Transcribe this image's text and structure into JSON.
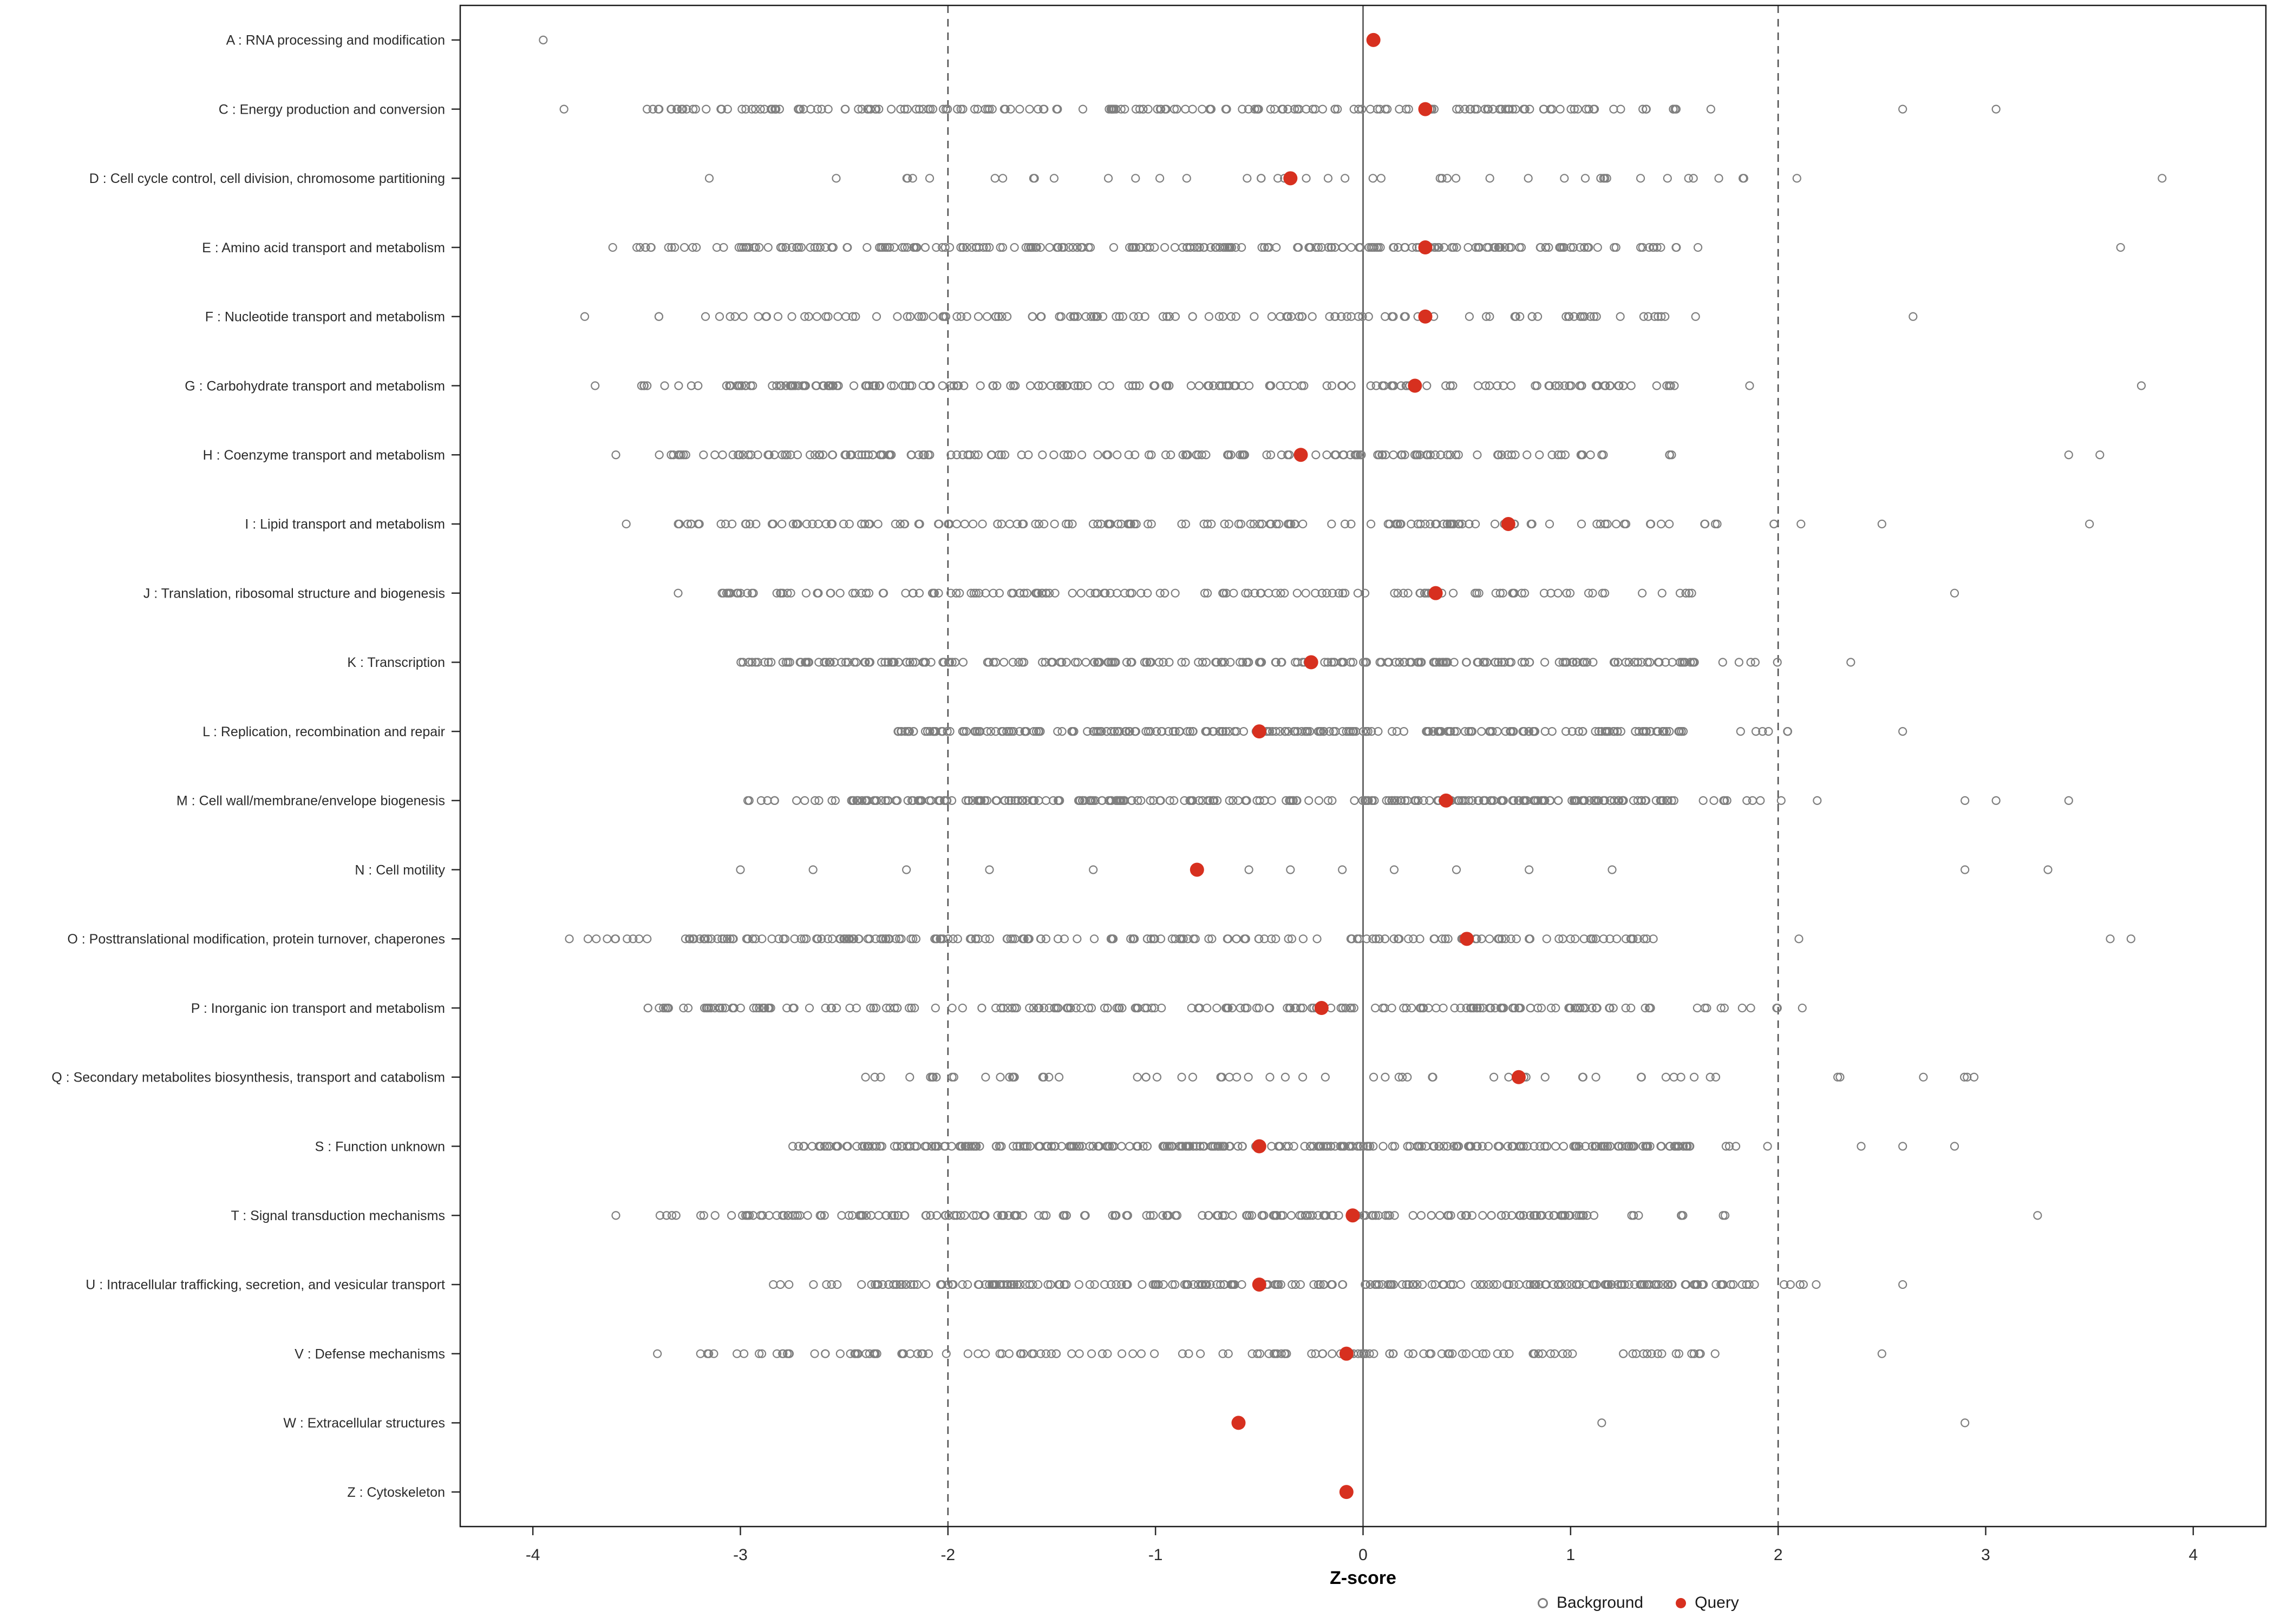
{
  "chart_data": {
    "type": "scatter",
    "title": "",
    "xlabel": "Z-score",
    "xlim": [
      -4.35,
      4.35
    ],
    "x_ticks": [
      -4,
      -3,
      -2,
      -1,
      0,
      1,
      2,
      3,
      4
    ],
    "ref_lines": {
      "solid": [
        0
      ],
      "dashed": [
        -2,
        2
      ]
    },
    "grid": false,
    "legend_position": "bottom",
    "colors": {
      "background": "#7f7f7f",
      "query": "#d7301f",
      "ref_line": "#4d4d4d",
      "panel_border": "#1a1a1a",
      "axis_text": "#2b2b2b"
    },
    "legend": [
      {
        "id": "background",
        "label": "Background",
        "marker": "open-circle"
      },
      {
        "id": "query",
        "label": "Query",
        "marker": "filled-circle"
      }
    ],
    "categories": [
      {
        "code": "A",
        "label": "A : RNA processing and modification",
        "query": 0.05,
        "bg_bands": [],
        "bg_points": [
          -3.95
        ]
      },
      {
        "code": "C",
        "label": "C : Energy production and conversion",
        "query": 0.3,
        "bg_bands": [
          [
            -3.6,
            -3.0,
            18
          ],
          [
            -3.0,
            1.25,
            170
          ],
          [
            1.3,
            1.7,
            8
          ]
        ],
        "bg_points": [
          -3.85,
          2.6,
          3.05
        ]
      },
      {
        "code": "D",
        "label": "D : Cell cycle control, cell division, chromosome partitioning",
        "query": -0.35,
        "bg_bands": [
          [
            -2.6,
            2.1,
            44
          ]
        ],
        "bg_points": [
          -3.15,
          3.85
        ]
      },
      {
        "code": "E",
        "label": "E : Amino acid transport and metabolism",
        "query": 0.3,
        "bg_bands": [
          [
            -3.7,
            -3.1,
            14
          ],
          [
            -3.1,
            1.25,
            210
          ],
          [
            1.3,
            1.65,
            10
          ]
        ],
        "bg_points": [
          3.65
        ]
      },
      {
        "code": "F",
        "label": "F : Nucleotide transport and metabolism",
        "query": 0.3,
        "bg_bands": [
          [
            -3.4,
            -2.9,
            8
          ],
          [
            -2.9,
            1.15,
            115
          ],
          [
            1.2,
            1.75,
            8
          ]
        ],
        "bg_points": [
          -3.75,
          2.65
        ]
      },
      {
        "code": "G",
        "label": "G : Carbohydrate transport and metabolism",
        "query": 0.25,
        "bg_bands": [
          [
            -3.5,
            -3.1,
            8
          ],
          [
            -3.1,
            1.3,
            180
          ],
          [
            1.4,
            1.9,
            6
          ]
        ],
        "bg_points": [
          -3.7,
          3.75
        ]
      },
      {
        "code": "H",
        "label": "H : Coenzyme transport and metabolism",
        "query": -0.3,
        "bg_bands": [
          [
            -3.4,
            1.5,
            165
          ]
        ],
        "bg_points": [
          -3.6,
          3.4,
          3.55
        ]
      },
      {
        "code": "I",
        "label": "I : Lipid transport and metabolism",
        "query": 0.7,
        "bg_bands": [
          [
            -3.3,
            1.5,
            160
          ],
          [
            1.6,
            2.2,
            7
          ]
        ],
        "bg_points": [
          -3.55,
          2.5,
          3.5
        ]
      },
      {
        "code": "J",
        "label": "J : Translation, ribosomal structure and biogenesis",
        "query": 0.35,
        "bg_bands": [
          [
            -3.1,
            1.2,
            145
          ],
          [
            1.3,
            1.6,
            7
          ]
        ],
        "bg_points": [
          -3.3,
          2.85
        ]
      },
      {
        "code": "K",
        "label": "K : Transcription",
        "query": -0.25,
        "bg_bands": [
          [
            -3.0,
            1.6,
            235
          ],
          [
            1.7,
            2.0,
            5
          ]
        ],
        "bg_points": [
          2.35
        ]
      },
      {
        "code": "L",
        "label": "L : Replication, recombination and repair",
        "query": -0.5,
        "bg_bands": [
          [
            -2.25,
            1.6,
            245
          ],
          [
            1.7,
            2.05,
            6
          ]
        ],
        "bg_points": [
          2.6
        ]
      },
      {
        "code": "M",
        "label": "M : Cell wall/membrane/envelope biogenesis",
        "query": 0.4,
        "bg_bands": [
          [
            -3.0,
            -2.6,
            10
          ],
          [
            -2.6,
            1.5,
            265
          ],
          [
            1.6,
            2.3,
            10
          ]
        ],
        "bg_points": [
          2.9,
          3.05,
          3.4
        ]
      },
      {
        "code": "N",
        "label": "N : Cell motility",
        "query": -0.8,
        "bg_bands": [],
        "bg_points": [
          -3.0,
          -2.65,
          -2.2,
          -1.8,
          -1.3,
          -0.55,
          -0.35,
          -0.1,
          0.15,
          0.45,
          0.8,
          1.2,
          2.9,
          3.3
        ]
      },
      {
        "code": "O",
        "label": "O : Posttranslational modification, protein turnover, chaperones",
        "query": 0.5,
        "bg_bands": [
          [
            -3.85,
            -3.3,
            10
          ],
          [
            -3.3,
            1.4,
            205
          ]
        ],
        "bg_points": [
          2.1,
          3.6,
          3.7
        ]
      },
      {
        "code": "P",
        "label": "P : Inorganic ion transport and metabolism",
        "query": -0.2,
        "bg_bands": [
          [
            -3.45,
            1.4,
            205
          ],
          [
            1.5,
            2.25,
            10
          ]
        ],
        "bg_points": []
      },
      {
        "code": "Q",
        "label": "Q : Secondary metabolites biosynthesis, transport and catabolism",
        "query": 0.75,
        "bg_bands": [
          [
            -2.4,
            2.0,
            58
          ],
          [
            2.1,
            2.95,
            6
          ]
        ],
        "bg_points": []
      },
      {
        "code": "S",
        "label": "S : Function unknown",
        "query": -0.5,
        "bg_bands": [
          [
            -2.75,
            1.6,
            285
          ],
          [
            1.7,
            1.95,
            4
          ]
        ],
        "bg_points": [
          2.4,
          2.6,
          2.85
        ]
      },
      {
        "code": "T",
        "label": "T : Signal transduction mechanisms",
        "query": -0.05,
        "bg_bands": [
          [
            -3.5,
            -3.0,
            8
          ],
          [
            -3.0,
            1.15,
            190
          ],
          [
            1.2,
            1.8,
            8
          ]
        ],
        "bg_points": [
          -3.6,
          3.25
        ]
      },
      {
        "code": "U",
        "label": "U : Intracellular trafficking, secretion, and vesicular transport",
        "query": -0.5,
        "bg_bands": [
          [
            -2.85,
            -2.4,
            8
          ],
          [
            -2.4,
            1.9,
            225
          ],
          [
            2.0,
            2.3,
            6
          ]
        ],
        "bg_points": [
          2.6
        ]
      },
      {
        "code": "V",
        "label": "V : Defense mechanisms",
        "query": -0.08,
        "bg_bands": [
          [
            -3.2,
            1.7,
            145
          ]
        ],
        "bg_points": [
          -3.4,
          2.5
        ]
      },
      {
        "code": "W",
        "label": "W : Extracellular structures",
        "query": -0.6,
        "bg_bands": [],
        "bg_points": [
          1.15,
          2.9
        ]
      },
      {
        "code": "Z",
        "label": "Z : Cytoskeleton",
        "query": -0.08,
        "bg_bands": [],
        "bg_points": []
      }
    ]
  }
}
